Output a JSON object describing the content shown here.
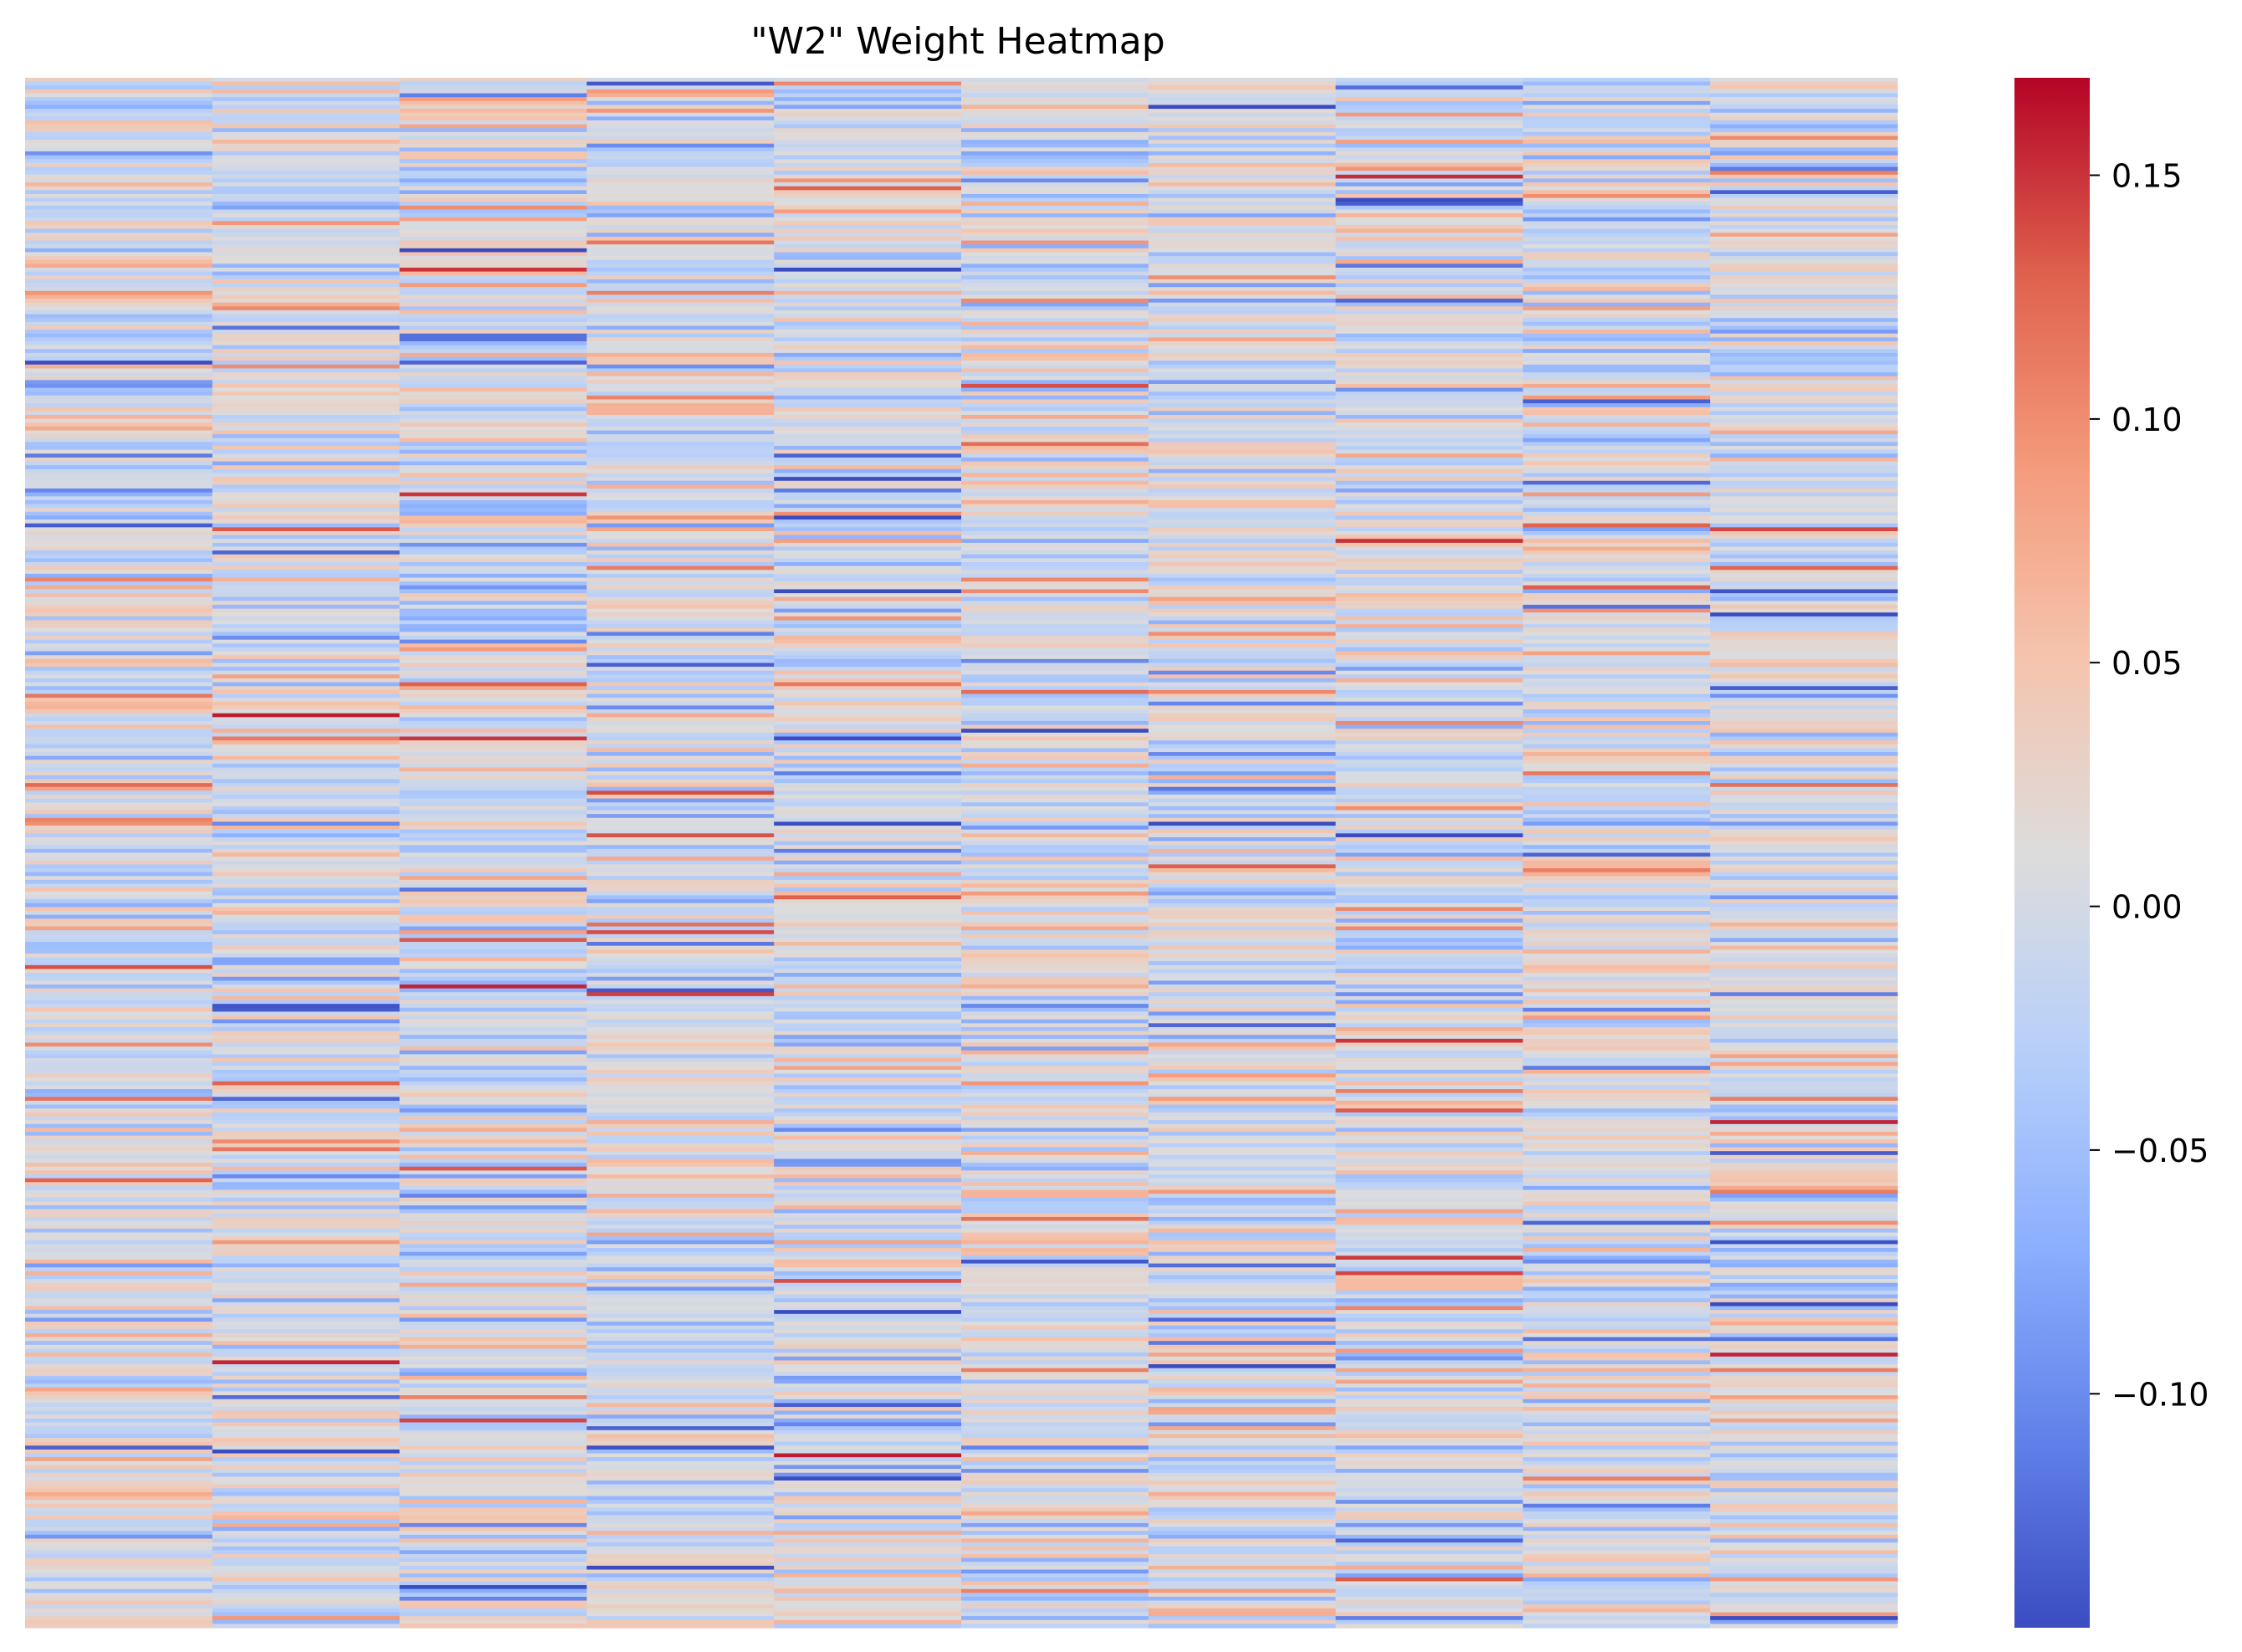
{
  "chart_data": {
    "type": "heatmap",
    "title": "\"W2\" Weight Heatmap",
    "xlabel": "",
    "ylabel": "",
    "columns": 10,
    "rows": 400,
    "colormap": "coolwarm",
    "vmin": -0.148,
    "vmax": 0.17,
    "value_range_note_visible": false,
    "colorbar": {
      "position": "right",
      "ticks": [
        0.15,
        0.1,
        0.05,
        0.0,
        -0.05,
        -0.1
      ],
      "tick_labels": [
        "0.15",
        "0.10",
        "0.05",
        "0.00",
        "−0.05",
        "−0.10"
      ]
    },
    "colors": {
      "low": "#3b4cc0",
      "mid": "#dddcdc",
      "high": "#b40426"
    },
    "grid": false,
    "axes_ticks_visible": false
  }
}
